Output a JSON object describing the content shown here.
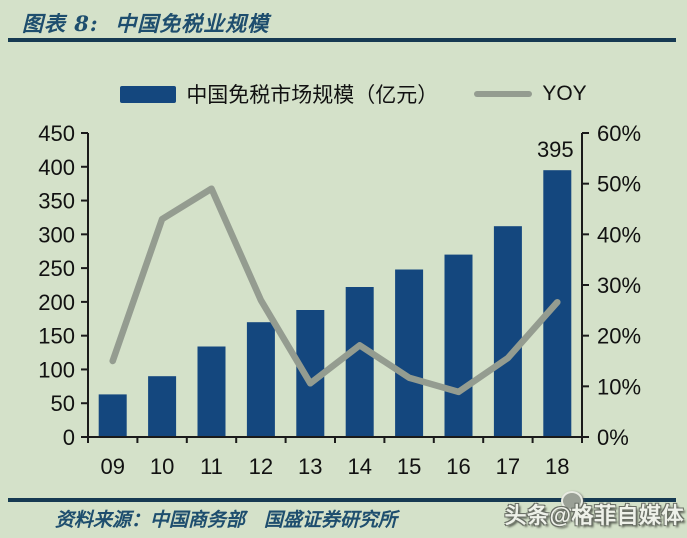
{
  "header": {
    "title": "图表 8:  中国免税业规模"
  },
  "legend": {
    "bar_label": "中国免税市场规模（亿元）",
    "line_label": "YOY"
  },
  "chart_data": {
    "type": "bar",
    "title": "中国免税业规模",
    "categories": [
      "09",
      "10",
      "11",
      "12",
      "13",
      "14",
      "15",
      "16",
      "17",
      "18"
    ],
    "series": [
      {
        "name": "中国免税市场规模（亿元）",
        "type": "bar",
        "axis": "left",
        "color": "#14477e",
        "values": [
          63,
          90,
          134,
          170,
          188,
          222,
          248,
          270,
          312,
          395
        ]
      },
      {
        "name": "YOY",
        "type": "line",
        "axis": "right",
        "color": "#949c90",
        "values": [
          15,
          43,
          49,
          27,
          10.6,
          18.1,
          11.7,
          8.9,
          15.6,
          26.6
        ]
      }
    ],
    "left_axis": {
      "min": 0,
      "max": 450,
      "step": 50,
      "ticks": [
        "0",
        "50",
        "100",
        "150",
        "200",
        "250",
        "300",
        "350",
        "400",
        "450"
      ]
    },
    "right_axis": {
      "min": 0,
      "max": 60,
      "step": 10,
      "ticks": [
        "0%",
        "10%",
        "20%",
        "30%",
        "40%",
        "50%",
        "60%"
      ]
    },
    "annotation": {
      "text": "395",
      "category": "18",
      "series": "中国免税市场规模（亿元）"
    },
    "grid": false,
    "legend_position": "top"
  },
  "footer": {
    "source": "资料来源：中国商务部　国盛证券研究所"
  },
  "watermark": {
    "text": "头条@格菲自媒体"
  },
  "colors": {
    "background": "#d4e1c9",
    "bar": "#14477e",
    "line": "#949c90",
    "rule": "#163a52",
    "heading": "#1e4e6e",
    "axis": "#1a1a1a",
    "label": "#111111"
  }
}
